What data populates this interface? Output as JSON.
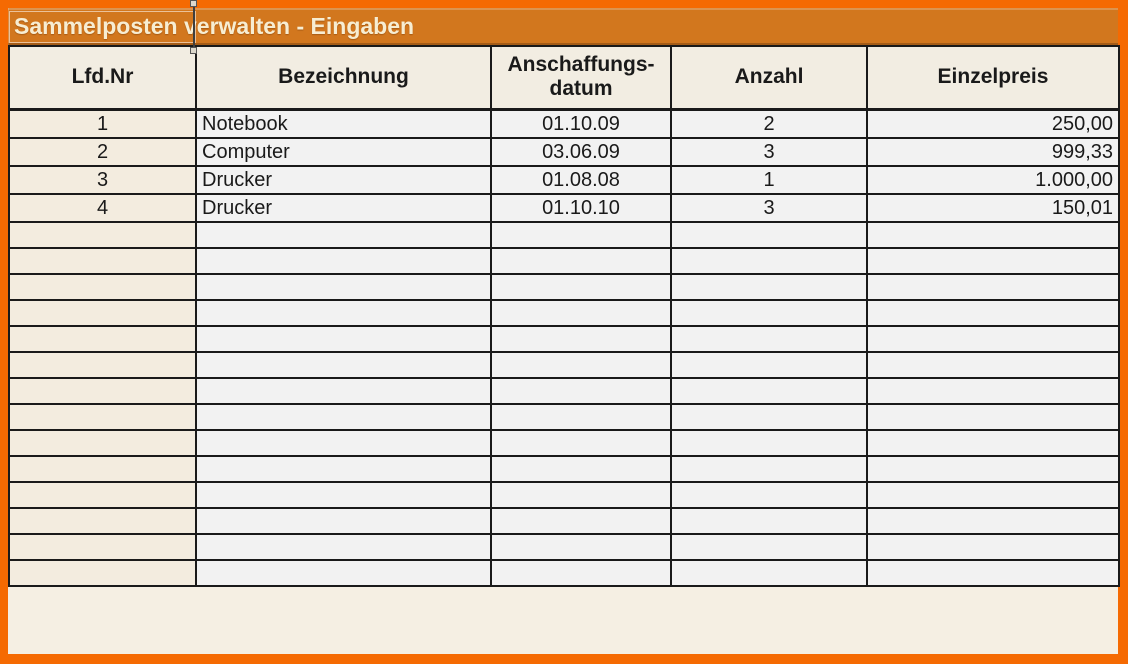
{
  "title_bar": {
    "title": "Sammelposten verwalten - Eingaben"
  },
  "table": {
    "columns": [
      {
        "id": "lfd-nr",
        "label": "Lfd.Nr",
        "align": "center"
      },
      {
        "id": "bezeichnung",
        "label": "Bezeichnung",
        "align": "left"
      },
      {
        "id": "anschaffungsdatum",
        "label": "Anschaffungs-\ndatum",
        "align": "center"
      },
      {
        "id": "anzahl",
        "label": "Anzahl",
        "align": "center"
      },
      {
        "id": "einzelpreis",
        "label": "Einzelpreis",
        "align": "right"
      }
    ],
    "rows": [
      [
        "1",
        "Notebook",
        "01.10.09",
        "2",
        "250,00"
      ],
      [
        "2",
        "Computer",
        "03.06.09",
        "3",
        "999,33"
      ],
      [
        "3",
        "Drucker",
        "01.08.08",
        "1",
        "1.000,00"
      ],
      [
        "4",
        "Drucker",
        "01.10.10",
        "3",
        "150,01"
      ]
    ],
    "empty_row_count": 14
  },
  "colors": {
    "frame_orange": "#F56A02",
    "title_bar_orange": "#D2771E",
    "title_text": "#F7EDD2",
    "header_bg": "#F2EDE2",
    "first_col_bg": "#F3ECDF",
    "cell_bg": "#F2F2F2",
    "border": "#1A1A1A"
  }
}
